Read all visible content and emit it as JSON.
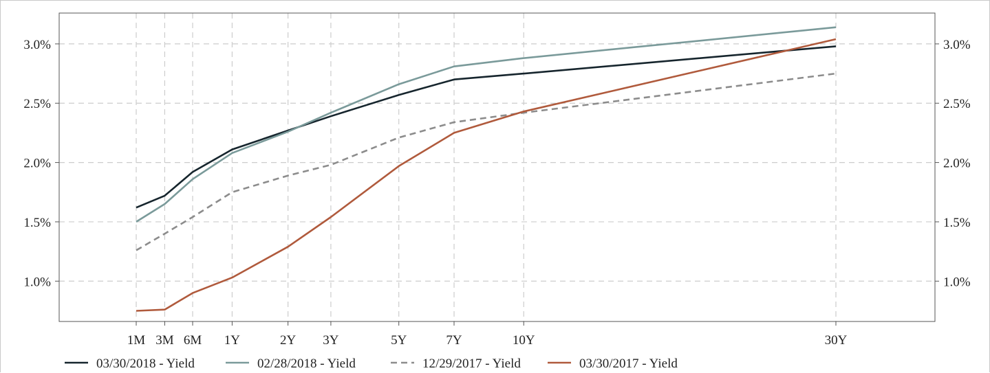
{
  "chart_data": {
    "type": "line",
    "title": "",
    "xlabel": "",
    "ylabel": "",
    "categories": [
      "1M",
      "3M",
      "6M",
      "1Y",
      "2Y",
      "3Y",
      "5Y",
      "7Y",
      "10Y",
      "30Y"
    ],
    "x_months": [
      1,
      3,
      6,
      12,
      24,
      36,
      60,
      84,
      120,
      360
    ],
    "ylim": [
      0.0066,
      0.0326
    ],
    "y_ticks": [
      0.01,
      0.015,
      0.02,
      0.025,
      0.03
    ],
    "y_tick_labels": [
      "1.0%",
      "1.5%",
      "2.0%",
      "2.5%",
      "3.0%"
    ],
    "grid": true,
    "legend_position": "bottom",
    "series": [
      {
        "name": "03/30/2018 - Yield",
        "color": "#16252d",
        "dash": "solid",
        "values": [
          0.0162,
          0.0172,
          0.0192,
          0.0211,
          0.0227,
          0.0239,
          0.0257,
          0.027,
          0.0275,
          0.0298
        ]
      },
      {
        "name": "02/28/2018 - Yield",
        "color": "#7a9a9a",
        "dash": "solid",
        "values": [
          0.015,
          0.0165,
          0.0186,
          0.0208,
          0.0226,
          0.0242,
          0.0266,
          0.0281,
          0.0288,
          0.0314
        ]
      },
      {
        "name": "12/29/2017 - Yield",
        "color": "#8c8c8c",
        "dash": "dashed",
        "values": [
          0.0126,
          0.014,
          0.0154,
          0.0175,
          0.0189,
          0.0198,
          0.0221,
          0.0234,
          0.0242,
          0.0275
        ]
      },
      {
        "name": "03/30/2017 - Yield",
        "color": "#b05a3c",
        "dash": "solid",
        "values": [
          0.0075,
          0.0076,
          0.009,
          0.0103,
          0.0129,
          0.0154,
          0.0197,
          0.0225,
          0.0243,
          0.0304
        ]
      }
    ]
  }
}
